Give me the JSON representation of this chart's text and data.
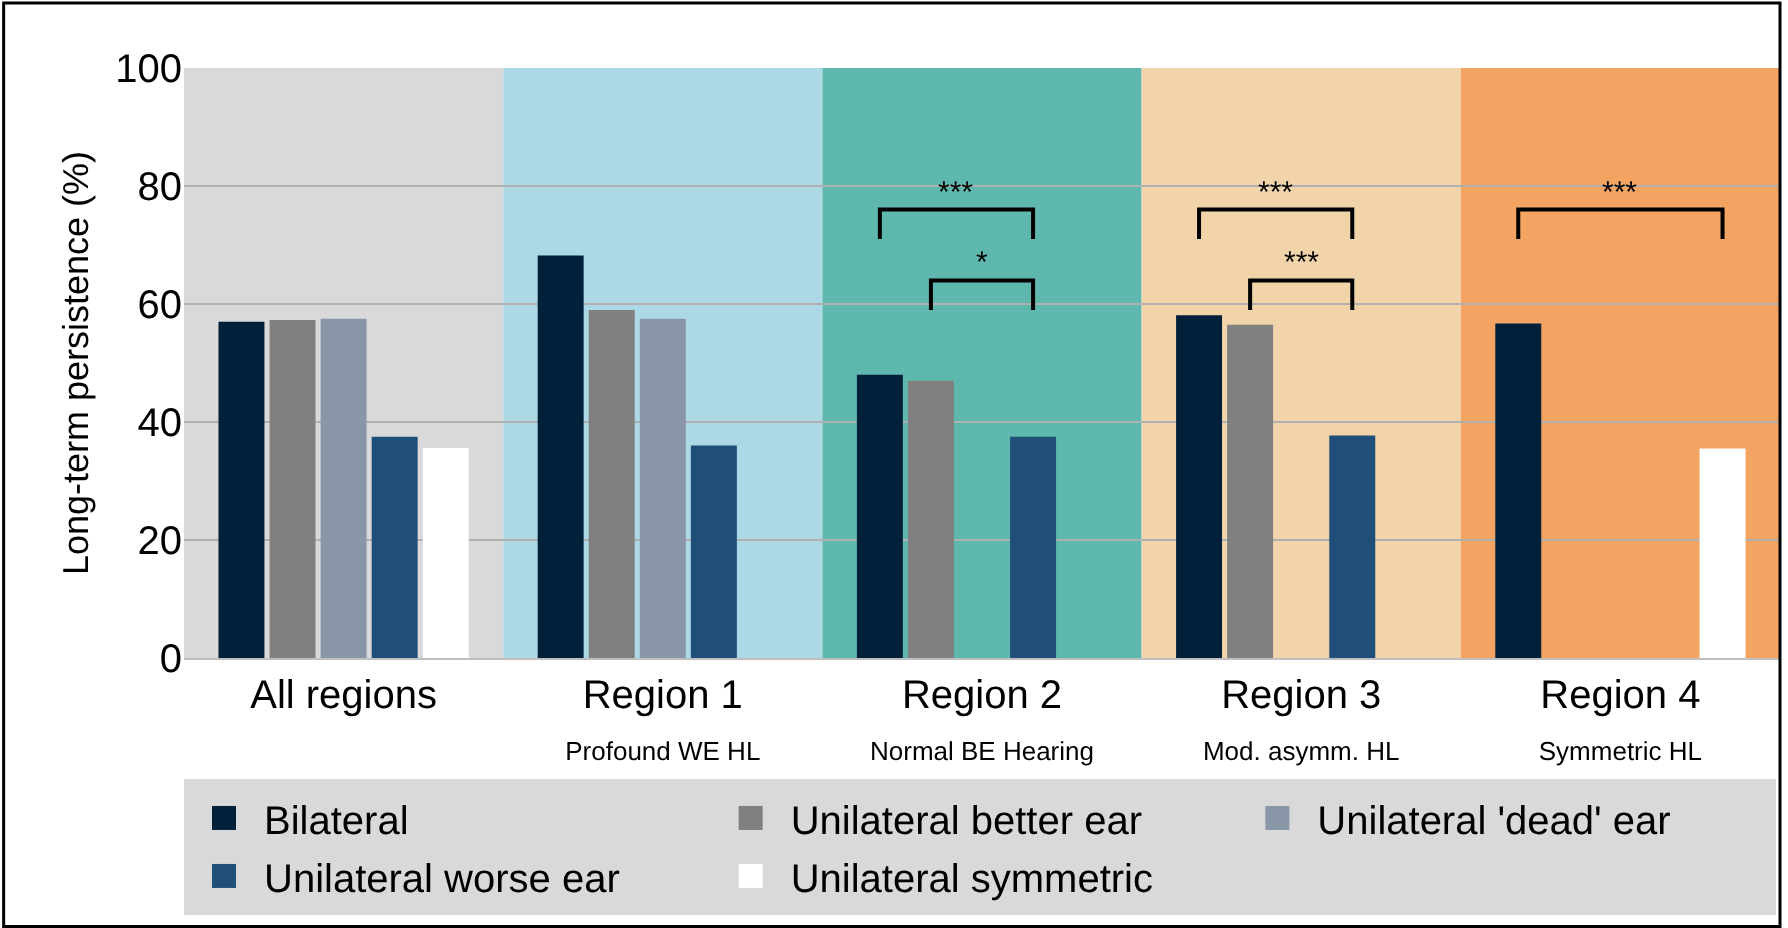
{
  "chart_data": {
    "type": "bar",
    "ylabel": "Long-term persistence (%)",
    "categories": [
      "All regions",
      "Region 1\nProfound WE HL",
      "Region 2\nNormal BE Hearing",
      "Region 3\nMod. asymm. HL",
      "Region 4\nSymmetric HL"
    ],
    "series": [
      {
        "name": "Bilateral",
        "color": "#002039",
        "values": [
          57.0,
          68.2,
          48.0,
          58.1,
          56.7
        ]
      },
      {
        "name": "Unilateral better ear",
        "color": "#808080",
        "values": [
          57.3,
          59.0,
          47.0,
          56.5,
          null
        ]
      },
      {
        "name": "Unilateral 'dead' ear",
        "color": "#8896a8",
        "values": [
          57.5,
          57.5,
          null,
          null,
          null
        ]
      },
      {
        "name": "Unilateral worse ear",
        "color": "#1f4e79",
        "values": [
          37.5,
          36.0,
          37.5,
          37.7,
          null
        ]
      },
      {
        "name": "Unilateral symmetric",
        "color": "#ffffff",
        "values": [
          35.6,
          null,
          null,
          null,
          35.5
        ]
      }
    ],
    "ylim": [
      0,
      100
    ],
    "yticks": [
      0,
      20,
      40,
      60,
      80,
      100
    ],
    "grid": "y",
    "legend": "bottom",
    "bands": [
      {
        "axis": "x",
        "from": "All regions",
        "to": "All regions",
        "color": "#d9d9d9"
      },
      {
        "axis": "x",
        "from": "Region 1\nProfound WE HL",
        "to": "Region 1\nProfound WE HL",
        "color": "#add8e6"
      },
      {
        "axis": "x",
        "from": "Region 2\nNormal BE Hearing",
        "to": "Region 2\nNormal BE Hearing",
        "color": "#5fb8ad"
      },
      {
        "axis": "x",
        "from": "Region 3\nMod. asymm. HL",
        "to": "Region 3\nMod. asymm. HL",
        "color": "#f1d4a9"
      },
      {
        "axis": "x",
        "from": "Region 4\nSymmetric HL",
        "to": "Region 4\nSymmetric HL",
        "color": "#f3a463"
      }
    ],
    "annotations": [
      "***",
      "*",
      "***",
      "***",
      "***"
    ]
  }
}
